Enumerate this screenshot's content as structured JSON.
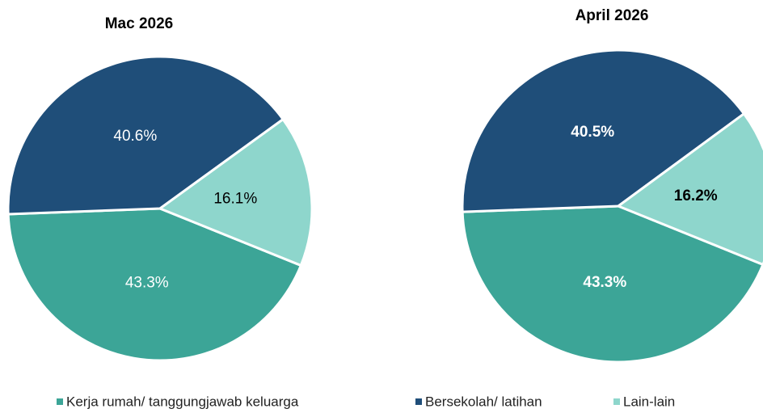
{
  "chart_data": [
    {
      "type": "pie",
      "title": "Mac 2026",
      "categories": [
        "Kerja rumah/ tanggungjawab keluarga",
        "Bersekolah/ latihan",
        "Lain-lain"
      ],
      "values": [
        43.3,
        40.6,
        16.1
      ],
      "value_labels": [
        "43.3%",
        "40.6%",
        "16.1%"
      ],
      "colors": [
        "#3ca597",
        "#1f4e79",
        "#8ed6cc"
      ]
    },
    {
      "type": "pie",
      "title": "April 2026",
      "categories": [
        "Kerja rumah/ tanggungjawab keluarga",
        "Bersekolah/ latihan",
        "Lain-lain"
      ],
      "values": [
        43.3,
        40.5,
        16.2
      ],
      "value_labels": [
        "43.3%",
        "40.5%",
        "16.2%"
      ],
      "colors": [
        "#3ca597",
        "#1f4e79",
        "#8ed6cc"
      ]
    }
  ]
}
